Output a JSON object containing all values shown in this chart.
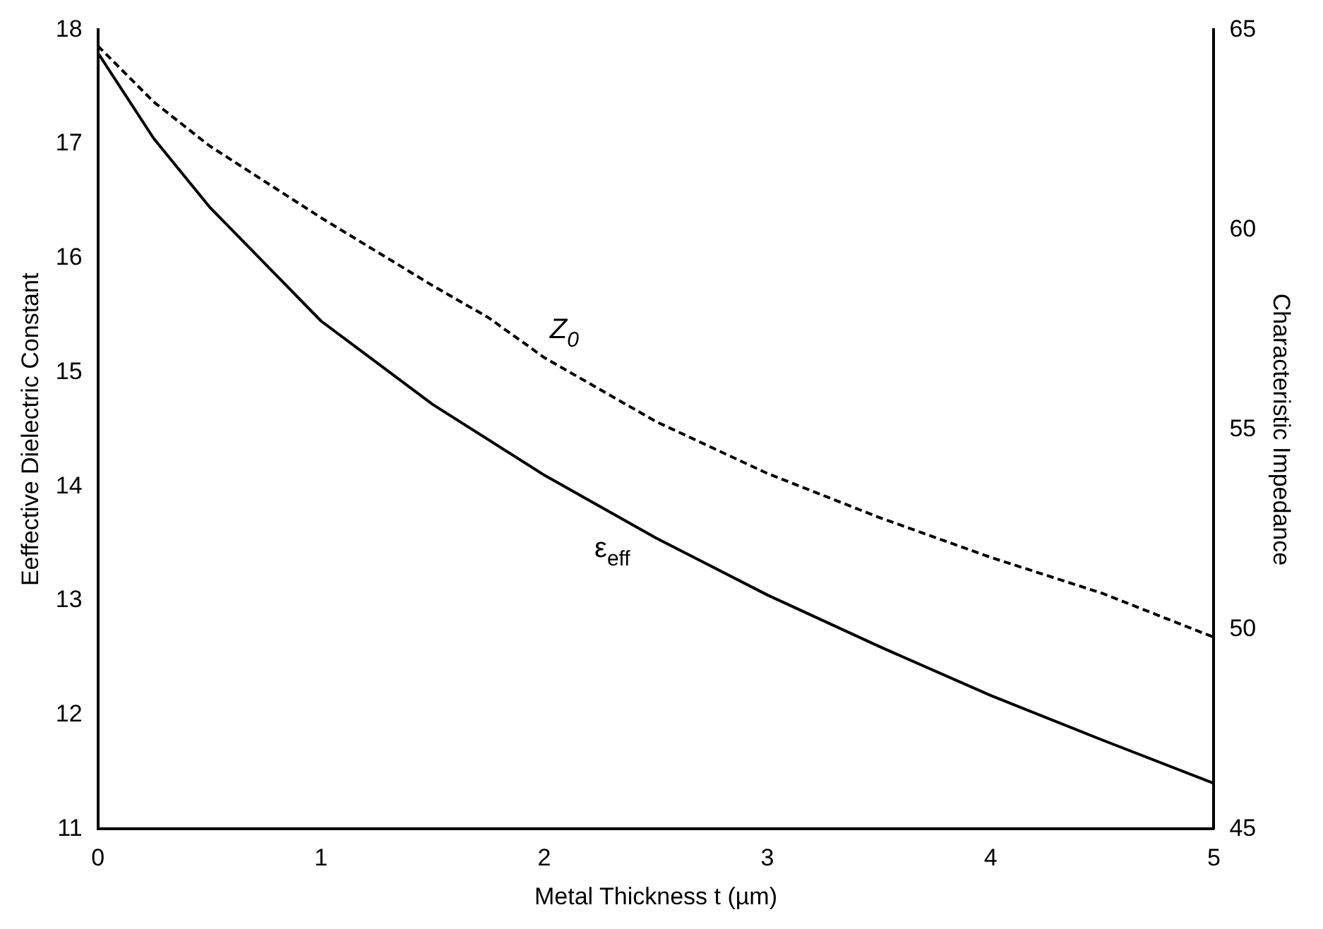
{
  "chart_data": {
    "type": "line",
    "xlabel": "Metal Thickness t (µm)",
    "ylabel": "Eeffective Dielectric Constant",
    "y2label": "Characteristic Impedance",
    "x": [
      0,
      0.25,
      0.5,
      0.75,
      1,
      1.5,
      2,
      2.5,
      3,
      3.5,
      4,
      4.5,
      5
    ],
    "series": [
      {
        "name": "ε$_{eff}$",
        "color": "#000000",
        "line_style": "solid",
        "values": [
          17.8,
          17.05,
          16.45,
          15.95,
          15.45,
          14.72,
          14.1,
          13.55,
          13.05,
          12.6,
          12.17,
          11.78,
          11.4
        ]
      },
      {
        "name": "Z$_{0}$",
        "color": "#000000",
        "line_style": "dashed",
        "axis": "y2",
        "x": [
          0,
          0.25,
          0.5,
          1,
          1.5,
          1.75,
          2,
          2.5,
          3,
          3.5,
          4,
          4.5,
          5
        ],
        "values": [
          64.6,
          63.2,
          62.1,
          60.3,
          58.6,
          57.8,
          56.8,
          55.2,
          53.9,
          52.8,
          51.8,
          50.9,
          49.8
        ]
      }
    ],
    "xlim": [
      0,
      5
    ],
    "xticks": [
      0,
      1,
      2,
      3,
      4,
      5
    ],
    "ylim": [
      11,
      18
    ],
    "yticks": [
      11,
      12,
      13,
      14,
      15,
      16,
      17,
      18
    ],
    "y2lim": [
      45,
      65
    ],
    "y2ticks": [
      45,
      50,
      55,
      60,
      65
    ],
    "grid": false,
    "legend": false,
    "marker": "none"
  }
}
